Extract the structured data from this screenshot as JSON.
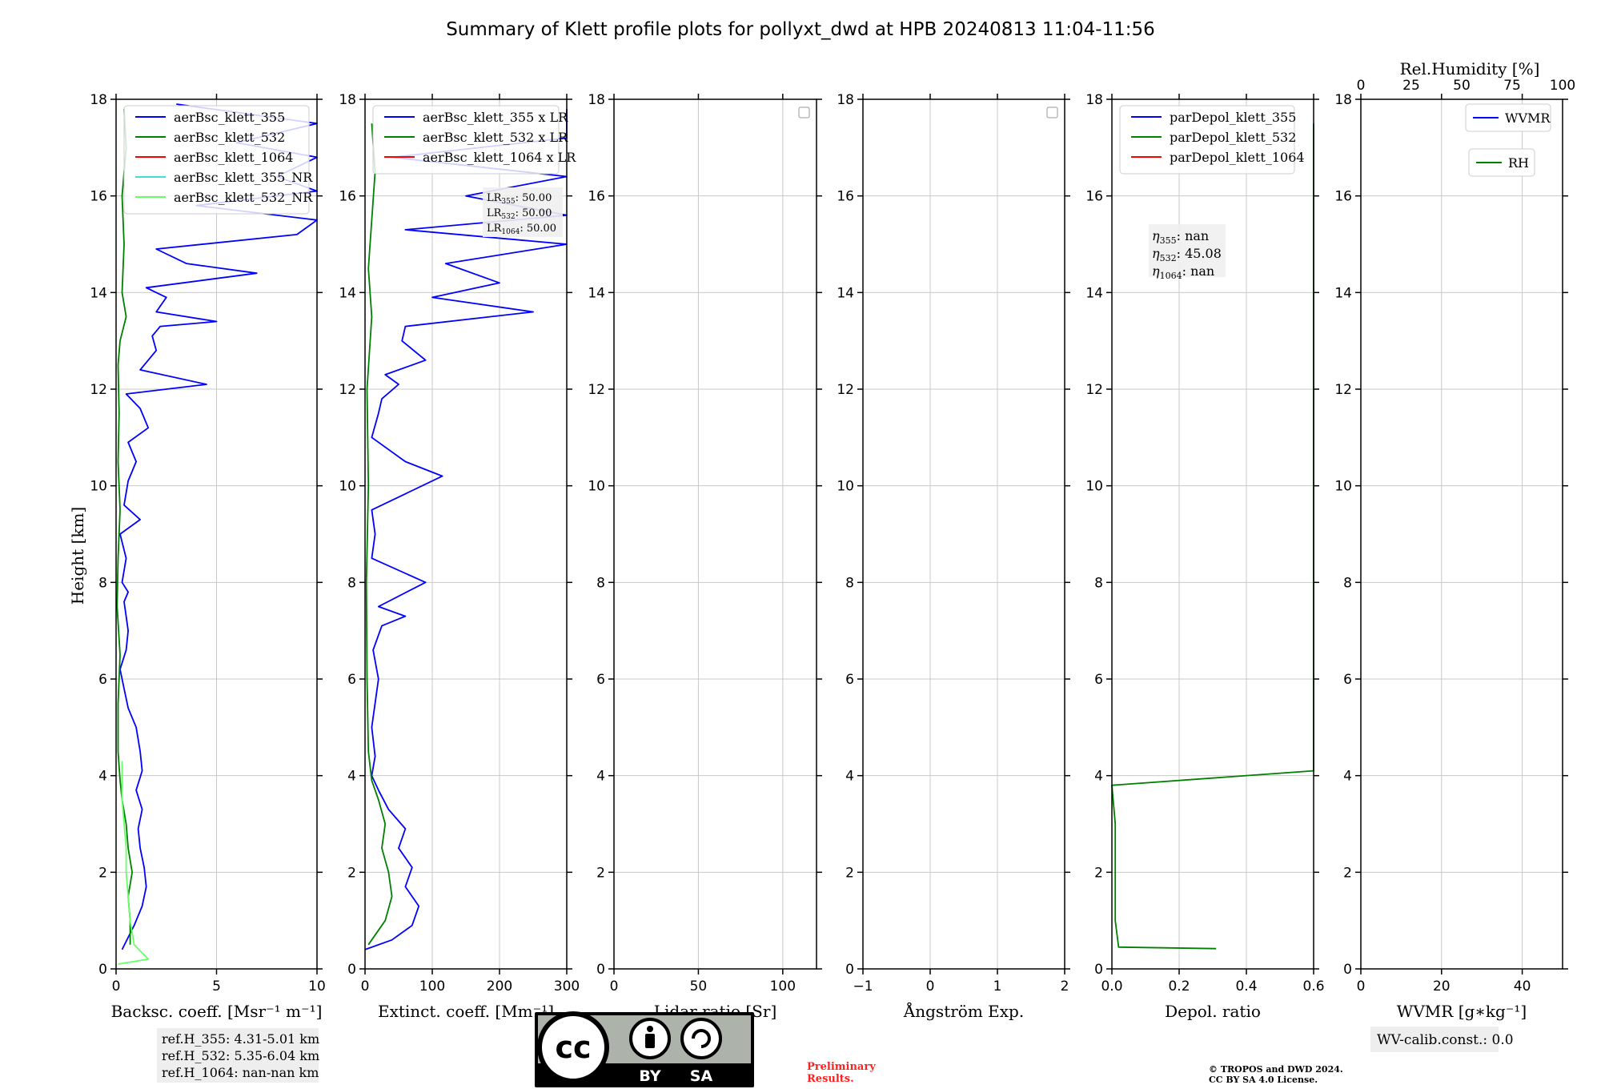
{
  "title": "Summary of Klett profile plots for pollyxt_dwd at HPB 20240813 11:04-11:56",
  "y_label": "Height [km]",
  "y_ticks": [
    "0",
    "2",
    "4",
    "6",
    "8",
    "10",
    "12",
    "14",
    "16",
    "18"
  ],
  "colors": {
    "c355": "#0000ff",
    "c532": "#008000",
    "c1064": "#ff0000",
    "c355nr": "#40e0d0",
    "c532nr": "#66ff66",
    "annot_red": "#ff2020"
  },
  "panels": [
    {
      "xlabel": "Backsc. coeff. [Msr⁻¹ m⁻¹]",
      "xticks": [
        "0",
        "5",
        "10"
      ],
      "legend": [
        "aerBsc_klett_355",
        "aerBsc_klett_532",
        "aerBsc_klett_1064",
        "aerBsc_klett_355_NR",
        "aerBsc_klett_532_NR"
      ],
      "note": [
        "ref.H_355: 4.31-5.01 km",
        "ref.H_532: 5.35-6.04 km",
        "ref.H_1064: nan-nan km"
      ]
    },
    {
      "xlabel": "Extinct. coeff. [Mm⁻¹]",
      "xticks": [
        "0",
        "100",
        "200",
        "300"
      ],
      "legend": [
        "aerBsc_klett_355 x LR",
        "aerBsc_klett_532 x LR",
        "aerBsc_klett_1064 x LR"
      ],
      "lr_text": [
        {
          "pre": "LR",
          "sub": "355",
          "val": ": 50.00"
        },
        {
          "pre": "LR",
          "sub": "532",
          "val": ": 50.00"
        },
        {
          "pre": "LR",
          "sub": "1064",
          "val": ": 50.00"
        }
      ]
    },
    {
      "xlabel": "Lidar ratio [Sr]",
      "xticks": [
        "0",
        "50",
        "100"
      ]
    },
    {
      "xlabel": "Ångström Exp.",
      "xticks": [
        "−1",
        "0",
        "1",
        "2"
      ]
    },
    {
      "xlabel": "Depol. ratio",
      "xticks": [
        "0.0",
        "0.2",
        "0.4",
        "0.6"
      ],
      "legend": [
        "parDepol_klett_355",
        "parDepol_klett_532",
        "parDepol_klett_1064"
      ],
      "eta_text": [
        {
          "pre": "η",
          "sub": "355",
          "val": ": nan"
        },
        {
          "pre": "η",
          "sub": "532",
          "val": ": 45.08"
        },
        {
          "pre": "η",
          "sub": "1064",
          "val": ": nan"
        }
      ]
    },
    {
      "xlabel": "WVMR [g∗kg⁻¹]",
      "xticks": [
        "0",
        "20",
        "40"
      ],
      "top_label": "Rel.Humidity [%]",
      "top_ticks": [
        "0",
        "25",
        "50",
        "75",
        "100"
      ],
      "legend_wvmr": "WVMR",
      "legend_rh": "RH",
      "note": "WV-calib.const.: 0.0"
    }
  ],
  "preliminary": [
    "Preliminary",
    "Results."
  ],
  "copyright": [
    "© TROPOS and DWD 2024.",
    "CC BY SA 4.0 License."
  ],
  "license_logo": {
    "cc": "cc",
    "by": "BY",
    "sa": "SA"
  },
  "chart_data": [
    {
      "type": "line",
      "xlabel": "Backsc. coeff. [Msr⁻¹ m⁻¹]",
      "ylabel": "Height [km]",
      "xlim": [
        0,
        10
      ],
      "ylim": [
        0,
        18
      ],
      "series": [
        {
          "name": "aerBsc_klett_355",
          "x": [
            0.3,
            0.9,
            1.3,
            1.5,
            1.4,
            1.2,
            1.1,
            1.3,
            1.0,
            1.3,
            1.2,
            1.0,
            0.6,
            0.4,
            0.2,
            0.5,
            0.6,
            0.5,
            0.4,
            0.6,
            0.3,
            0.5,
            0.2,
            1.2,
            0.4,
            0.6,
            1.0,
            0.6,
            1.6,
            1.2,
            0.5,
            4.5,
            1.2,
            2.0,
            1.8,
            2.2,
            5.0,
            2.0,
            2.5,
            1.5,
            7.0,
            3.5,
            2.0,
            9.0,
            10.0,
            4.0,
            10.0,
            8.0,
            10.0,
            6.0,
            10.0,
            3.0
          ],
          "y": [
            0.4,
            0.9,
            1.3,
            1.7,
            2.1,
            2.5,
            2.9,
            3.3,
            3.7,
            4.1,
            4.5,
            5.0,
            5.4,
            5.8,
            6.2,
            6.6,
            7.0,
            7.3,
            7.6,
            7.8,
            8.0,
            8.5,
            9.0,
            9.3,
            9.6,
            10.1,
            10.5,
            10.9,
            11.2,
            11.6,
            11.9,
            12.1,
            12.4,
            12.8,
            13.1,
            13.3,
            13.4,
            13.6,
            13.9,
            14.1,
            14.4,
            14.6,
            14.9,
            15.2,
            15.5,
            15.8,
            16.1,
            16.4,
            16.8,
            17.1,
            17.5,
            17.9
          ]
        },
        {
          "name": "aerBsc_klett_532",
          "x": [
            0.7,
            0.7,
            0.6,
            0.8,
            0.6,
            0.5,
            0.3,
            0.2,
            0.1,
            0.1,
            0.2,
            0.05,
            0.1,
            0.2,
            0.1,
            0.15,
            0.1,
            0.2,
            0.5,
            0.3,
            0.4,
            0.3,
            0.5,
            0.4
          ],
          "y": [
            0.5,
            1.0,
            1.5,
            2.0,
            2.5,
            3.0,
            3.5,
            3.9,
            4.5,
            5.5,
            6.5,
            7.5,
            8.5,
            9.5,
            10.5,
            11.5,
            12.5,
            13.0,
            13.5,
            14.0,
            15.0,
            16.0,
            17.0,
            17.8
          ]
        },
        {
          "name": "aerBsc_klett_1064",
          "x": [],
          "y": []
        },
        {
          "name": "aerBsc_klett_355_NR",
          "x": [],
          "y": []
        },
        {
          "name": "aerBsc_klett_532_NR",
          "x": [
            0.1,
            1.6,
            0.9,
            0.7,
            0.6,
            0.5,
            0.5,
            0.4,
            0.3,
            0.3
          ],
          "y": [
            0.1,
            0.2,
            0.5,
            1.0,
            1.5,
            2.0,
            2.5,
            3.0,
            3.5,
            4.3
          ]
        }
      ],
      "annotations": [
        "ref.H_355: 4.31-5.01 km",
        "ref.H_532: 5.35-6.04 km",
        "ref.H_1064: nan-nan km"
      ]
    },
    {
      "type": "line",
      "xlabel": "Extinct. coeff. [Mm⁻¹]",
      "ylabel": "Height [km]",
      "xlim": [
        0,
        300
      ],
      "ylim": [
        0,
        18
      ],
      "series": [
        {
          "name": "aerBsc_klett_355 x LR",
          "x": [
            0,
            40,
            70,
            80,
            60,
            70,
            50,
            60,
            35,
            20,
            10,
            15,
            10,
            20,
            12,
            25,
            60,
            20,
            90,
            10,
            15,
            10,
            115,
            60,
            10,
            20,
            25,
            50,
            30,
            90,
            55,
            60,
            250,
            100,
            200,
            120,
            300,
            60,
            300,
            150,
            300,
            40,
            300,
            300
          ],
          "y": [
            0.4,
            0.6,
            0.9,
            1.3,
            1.7,
            2.1,
            2.5,
            2.9,
            3.3,
            3.7,
            4.0,
            4.4,
            5.0,
            6.0,
            6.6,
            7.1,
            7.3,
            7.5,
            8.0,
            8.5,
            9.0,
            9.5,
            10.2,
            10.5,
            11.0,
            11.5,
            11.8,
            12.1,
            12.3,
            12.6,
            13.0,
            13.3,
            13.6,
            13.9,
            14.2,
            14.6,
            15.0,
            15.3,
            15.6,
            16.0,
            16.4,
            16.8,
            17.2,
            17.8
          ]
        },
        {
          "name": "aerBsc_klett_532 x LR",
          "x": [
            5,
            30,
            40,
            35,
            25,
            30,
            20,
            10,
            5,
            3,
            2,
            5,
            3,
            10,
            5,
            10,
            15,
            10
          ],
          "y": [
            0.5,
            1.0,
            1.5,
            2.0,
            2.5,
            3.0,
            3.5,
            3.9,
            4.5,
            6.0,
            8.0,
            10.0,
            12.0,
            13.5,
            14.5,
            15.5,
            16.5,
            17.5
          ]
        },
        {
          "name": "aerBsc_klett_1064 x LR",
          "x": [],
          "y": []
        }
      ],
      "annotations": [
        "LR355: 50.00",
        "LR532: 50.00",
        "LR1064: 50.00"
      ]
    },
    {
      "type": "line",
      "xlabel": "Lidar ratio [Sr]",
      "ylabel": "Height [km]",
      "xlim": [
        0,
        120
      ],
      "ylim": [
        0,
        18
      ],
      "series": []
    },
    {
      "type": "line",
      "xlabel": "Ångström Exp.",
      "ylabel": "Height [km]",
      "xlim": [
        -1,
        2
      ],
      "ylim": [
        0,
        18
      ],
      "series": []
    },
    {
      "type": "line",
      "xlabel": "Depol. ratio",
      "ylabel": "Height [km]",
      "xlim": [
        0.0,
        0.6
      ],
      "ylim": [
        0,
        18
      ],
      "series": [
        {
          "name": "parDepol_klett_355",
          "x": [],
          "y": []
        },
        {
          "name": "parDepol_klett_532",
          "x": [
            0.31,
            0.02,
            0.01,
            0.01,
            0.01,
            0.0,
            0.6,
            0.6,
            0.6,
            0.6,
            0.6,
            0.6,
            0.6,
            0.6,
            0.6,
            0.6,
            0.6,
            0.6,
            0.6,
            0.6,
            0.6,
            0.6,
            0.6,
            0.6
          ],
          "y": [
            0.42,
            0.45,
            1.0,
            2.0,
            3.0,
            3.8,
            4.1,
            4.6,
            5.8,
            6.5,
            7.4,
            8.0,
            8.5,
            10.2,
            10.5,
            11.4,
            11.7,
            12.4,
            12.8,
            13.3,
            14.0,
            15.6,
            16.4,
            17.5
          ]
        },
        {
          "name": "parDepol_klett_1064",
          "x": [],
          "y": []
        }
      ],
      "annotations": [
        "η355: nan",
        "η532: 45.08",
        "η1064: nan"
      ]
    },
    {
      "type": "line",
      "xlabel": "WVMR [g∗kg⁻¹]",
      "ylabel": "Height [km]",
      "xlim": [
        0,
        50
      ],
      "ylim": [
        0,
        18
      ],
      "top_axis": {
        "label": "Rel.Humidity [%]",
        "lim": [
          0,
          100
        ]
      },
      "series": [
        {
          "name": "WVMR",
          "x": [],
          "y": []
        },
        {
          "name": "RH",
          "x": [],
          "y": []
        }
      ],
      "annotations": [
        "WV-calib.const.: 0.0"
      ]
    }
  ]
}
